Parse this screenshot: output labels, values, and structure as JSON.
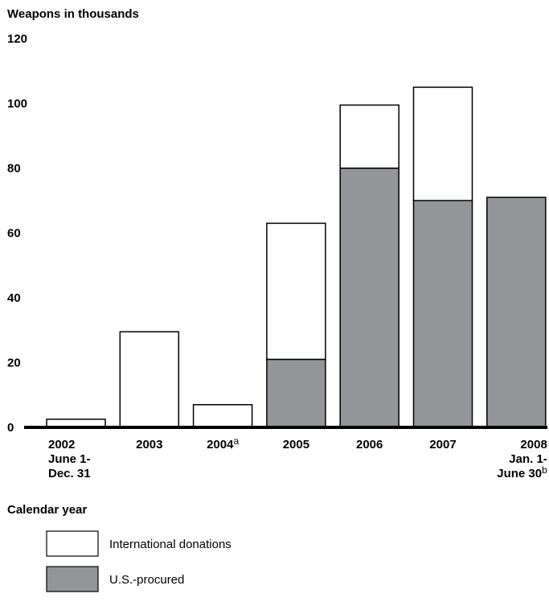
{
  "chart_data": {
    "type": "bar",
    "stacked": true,
    "title": "",
    "ylabel": "Weapons in thousands",
    "xlabel": "Calendar year",
    "ylim": [
      0,
      120
    ],
    "yticks": [
      0,
      20,
      40,
      60,
      80,
      100,
      120
    ],
    "grid": false,
    "categories": [
      {
        "label": "2002",
        "sup": "",
        "sub": [
          "June 1-",
          "Dec. 31"
        ]
      },
      {
        "label": "2003",
        "sup": "",
        "sub": []
      },
      {
        "label": "2004",
        "sup": "a",
        "sub": []
      },
      {
        "label": "2005",
        "sup": "",
        "sub": []
      },
      {
        "label": "2006",
        "sup": "",
        "sub": []
      },
      {
        "label": "2007",
        "sup": "",
        "sub": []
      },
      {
        "label": "2008",
        "sup": "",
        "sub": [
          "Jan. 1-",
          "June 30"
        ],
        "sub_sup": "b"
      }
    ],
    "series": [
      {
        "name": "U.S.-procured",
        "color": "#939598",
        "values": [
          0,
          0,
          0,
          21,
          80,
          70,
          71
        ]
      },
      {
        "name": "International donations",
        "color": "#ffffff",
        "values": [
          2.5,
          29.5,
          7,
          42,
          19.5,
          35,
          0
        ]
      }
    ],
    "legend": {
      "placement": "bottom-left",
      "items": [
        {
          "label": "International donations",
          "color": "#ffffff"
        },
        {
          "label": "U.S.-procured",
          "color": "#939598"
        }
      ]
    }
  }
}
